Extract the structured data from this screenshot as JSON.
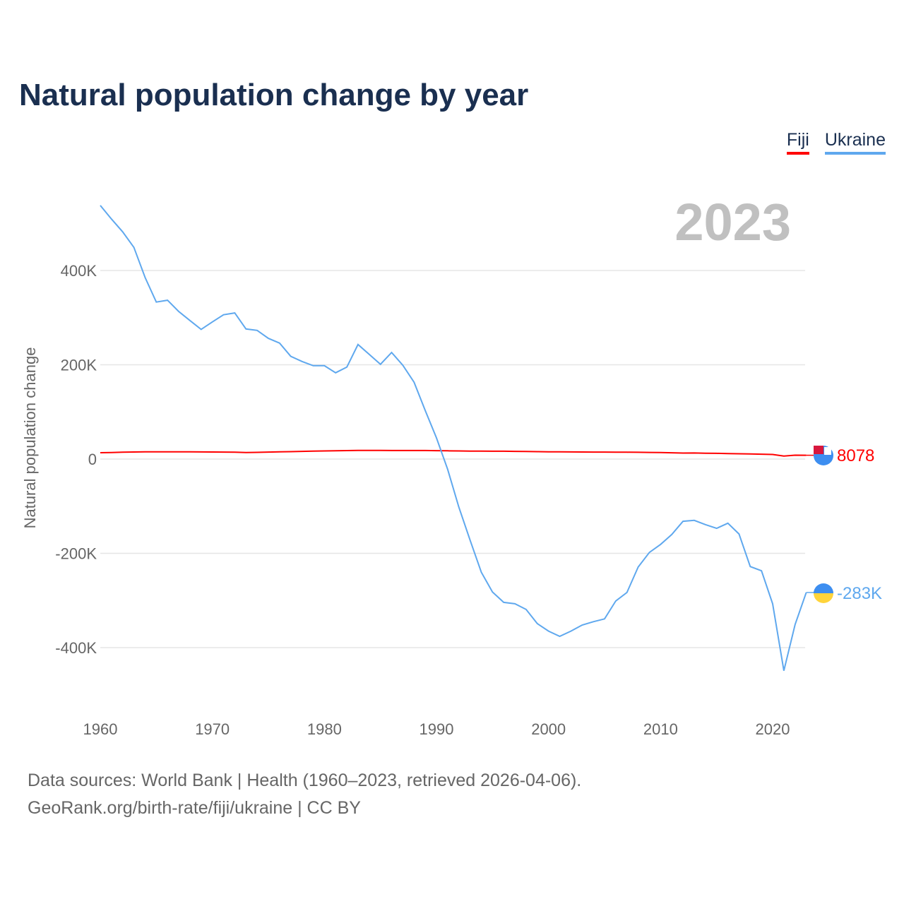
{
  "chart_data": {
    "type": "line",
    "title": "Natural population change by year",
    "ylabel": "Natural population change",
    "xlabel": "",
    "year_label": "2023",
    "xlim": [
      1960,
      2023
    ],
    "ylim": [
      -520000,
      560000
    ],
    "x_ticks": [
      1960,
      1970,
      1980,
      1990,
      2000,
      2010,
      2020
    ],
    "x_tick_labels": [
      "1960",
      "1970",
      "1980",
      "1990",
      "2000",
      "2010",
      "2020"
    ],
    "y_ticks": [
      -400000,
      -200000,
      0,
      200000,
      400000
    ],
    "y_tick_labels": [
      "-400K",
      "-200K",
      "0",
      "200K",
      "400K"
    ],
    "grid": true,
    "legend_position": "top-right",
    "series": [
      {
        "name": "Fiji",
        "color": "#ff0000",
        "end_label": "8078",
        "values": [
          13500,
          14000,
          14500,
          15000,
          15300,
          15500,
          15500,
          15400,
          15300,
          15200,
          15000,
          14800,
          14500,
          14000,
          14200,
          14800,
          15300,
          15800,
          16300,
          16800,
          17200,
          17600,
          18000,
          18300,
          18500,
          18400,
          18200,
          18200,
          18200,
          18100,
          17900,
          17600,
          17300,
          17000,
          16800,
          16700,
          16600,
          16400,
          16100,
          15800,
          15500,
          15300,
          15200,
          15000,
          14900,
          14800,
          14700,
          14600,
          14400,
          14100,
          13800,
          13400,
          12800,
          12900,
          12500,
          12100,
          11700,
          11300,
          10800,
          10300,
          9700,
          6500,
          8200,
          8078
        ]
      },
      {
        "name": "Ukraine",
        "color": "#5fa8ee",
        "end_label": "-283K",
        "values": [
          538000,
          509000,
          482000,
          449000,
          385000,
          333000,
          337000,
          313000,
          294000,
          275000,
          291000,
          306000,
          310000,
          276000,
          273000,
          256000,
          246000,
          218000,
          207000,
          198000,
          198000,
          183000,
          195000,
          243000,
          222000,
          201000,
          226000,
          199000,
          163000,
          103000,
          45000,
          -22000,
          -102000,
          -172000,
          -240000,
          -282000,
          -304000,
          -307000,
          -319000,
          -349000,
          -365000,
          -376000,
          -365000,
          -352000,
          -345000,
          -339000,
          -301000,
          -283000,
          -229000,
          -198000,
          -181000,
          -160000,
          -132000,
          -130000,
          -139000,
          -147000,
          -136000,
          -159000,
          -228000,
          -237000,
          -307000,
          -449000,
          -351000,
          -283000
        ]
      }
    ]
  },
  "footer": {
    "line1": "Data sources: World Bank | Health (1960–2023, retrieved 2026-04-06).",
    "line2": "GeoRank.org/birth-rate/fiji/ukraine | CC BY"
  }
}
